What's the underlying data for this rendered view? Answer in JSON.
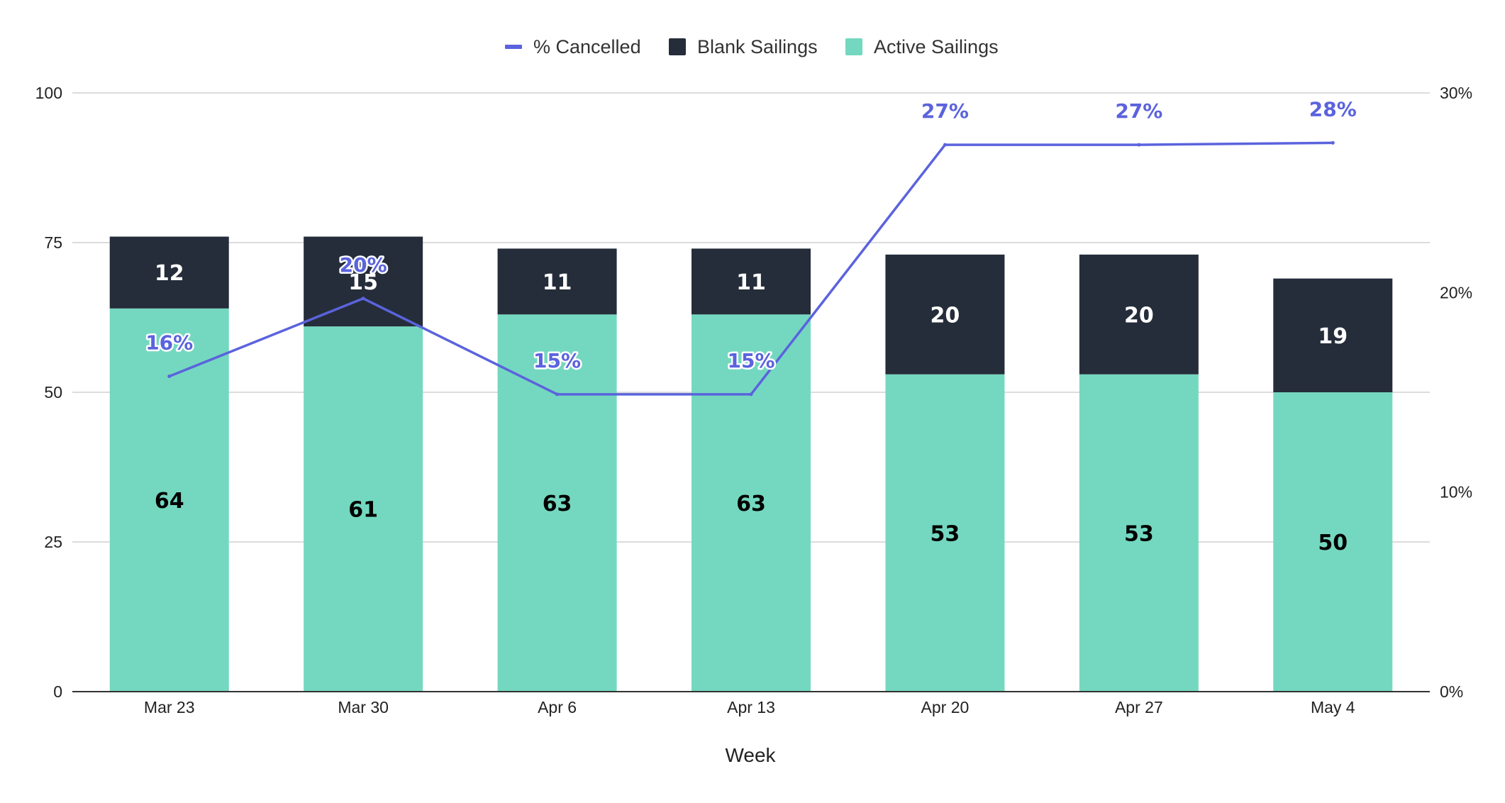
{
  "chart_data": {
    "type": "bar",
    "stacked": true,
    "title": "",
    "xlabel": "Week",
    "ylabel": "",
    "ylim": [
      0,
      100
    ],
    "y2lim": [
      0,
      30
    ],
    "y_ticks": [
      "0",
      "25",
      "50",
      "75",
      "100"
    ],
    "y2_ticks": [
      "0%",
      "10%",
      "20%",
      "30%"
    ],
    "categories": [
      "Mar 23",
      "Mar 30",
      "Apr 6",
      "Apr 13",
      "Apr 20",
      "Apr 27",
      "May 4"
    ],
    "legend_position": "top-center",
    "grid": true,
    "series": [
      {
        "name": "Active Sailings",
        "kind": "bar",
        "color": "#74d8c0",
        "values": [
          64,
          61,
          63,
          63,
          53,
          53,
          50
        ]
      },
      {
        "name": "Blank Sailings",
        "kind": "bar",
        "color": "#252d3a",
        "values": [
          12,
          15,
          11,
          11,
          20,
          20,
          19
        ]
      },
      {
        "name": "% Cancelled",
        "kind": "line",
        "axis": "right",
        "color": "#5b63dd",
        "values": [
          15.8,
          19.7,
          14.9,
          14.9,
          27.4,
          27.4,
          27.5
        ],
        "labels": [
          "16%",
          "20%",
          "15%",
          "15%",
          "27%",
          "27%",
          "28%"
        ]
      }
    ],
    "legend": [
      "% Cancelled",
      "Blank Sailings",
      "Active Sailings"
    ]
  }
}
